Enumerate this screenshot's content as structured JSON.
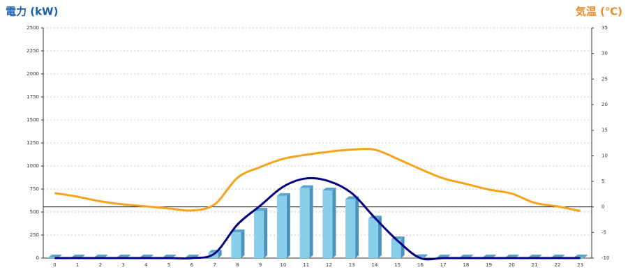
{
  "chart_data": {
    "type": "bar",
    "y_title": "電力 (kW)",
    "y2_title": "気温 (℃)",
    "categories": [
      "0",
      "1",
      "2",
      "3",
      "4",
      "5",
      "6",
      "7",
      "8",
      "9",
      "10",
      "11",
      "12",
      "13",
      "14",
      "15",
      "16",
      "17",
      "18",
      "19",
      "20",
      "21",
      "22",
      "23"
    ],
    "series": [
      {
        "type": "bar",
        "color": "#87ceeb",
        "values": [
          0,
          0,
          0,
          0,
          0,
          0,
          0,
          60,
          280,
          515,
          675,
          760,
          735,
          640,
          430,
          205,
          10,
          0,
          0,
          0,
          0,
          0,
          0,
          0
        ]
      },
      {
        "type": "line",
        "color": "#000080",
        "values": [
          0,
          0,
          0,
          0,
          0,
          0,
          0,
          50,
          365,
          570,
          775,
          865,
          835,
          705,
          440,
          190,
          0,
          0,
          0,
          0,
          0,
          0,
          0,
          0
        ]
      },
      {
        "type": "line",
        "axis": "y2",
        "color": "#f7a21b",
        "values": [
          2.7,
          2.0,
          1.1,
          0.5,
          0.1,
          -0.3,
          -0.7,
          0.5,
          5.7,
          7.8,
          9.4,
          10.2,
          10.8,
          11.2,
          11.2,
          9.4,
          7.4,
          5.6,
          4.5,
          3.4,
          2.6,
          0.8,
          0.1,
          -0.8
        ]
      }
    ],
    "ylim": [
      0,
      2500
    ],
    "yticks": [
      0,
      250,
      500,
      750,
      1000,
      1250,
      1500,
      1750,
      2000,
      2250,
      2500
    ],
    "y2lim": [
      -10,
      35
    ],
    "y2ticks": [
      -10,
      -5,
      0,
      5,
      10,
      15,
      20,
      25,
      30,
      35
    ],
    "grid": true,
    "y2_zero_line": true
  }
}
